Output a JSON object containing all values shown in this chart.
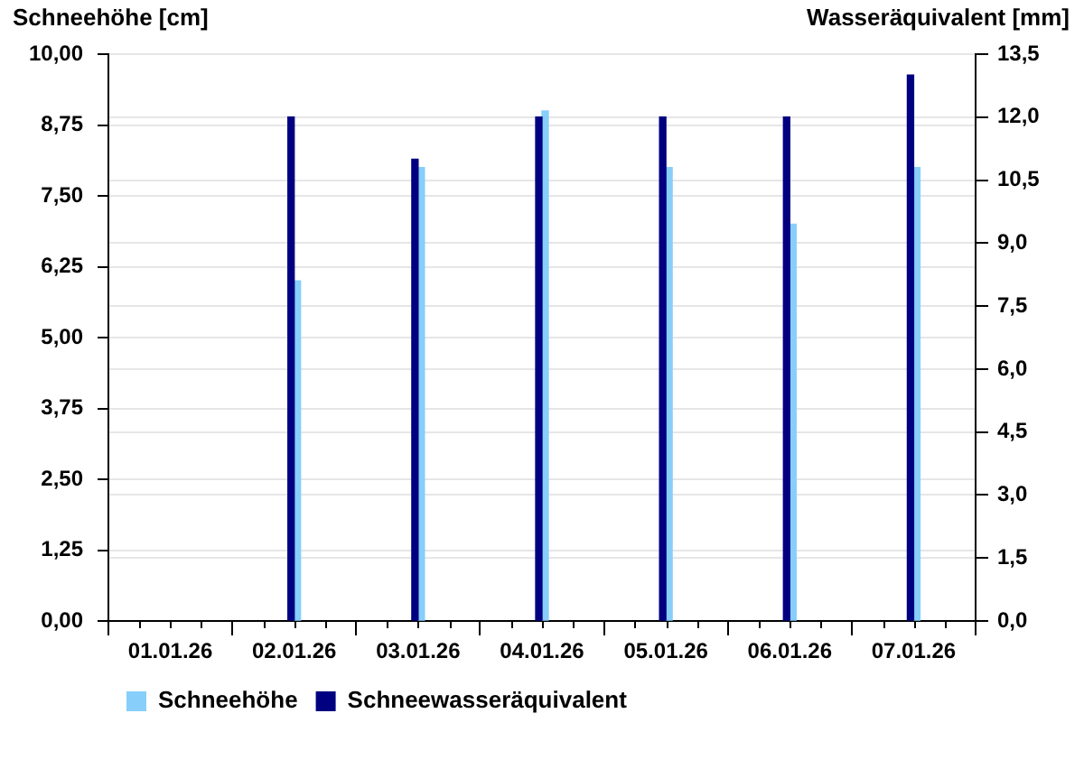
{
  "chart_data": {
    "type": "bar",
    "categories": [
      "01.01.26",
      "02.01.26",
      "03.01.26",
      "04.01.26",
      "05.01.26",
      "06.01.26",
      "07.01.26"
    ],
    "ylabel": "Schneehöhe [cm]",
    "y2label": "Wasseräquivalent [mm]",
    "series": [
      {
        "name": "Schneehöhe",
        "color": "#87cefa",
        "values": [
          null,
          6.0,
          8.0,
          9.0,
          8.0,
          7.0,
          8.0
        ]
      },
      {
        "name": "Schneewasseräquivalent",
        "color": "#000080",
        "axis": "y2",
        "values": [
          null,
          12.0,
          11.0,
          12.0,
          12.0,
          12.0,
          13.0
        ]
      }
    ],
    "ylim": [
      0,
      10
    ],
    "yticks": [
      {
        "value": 0,
        "label": "0,00"
      },
      {
        "value": 1.25,
        "label": "1,25"
      },
      {
        "value": 2.5,
        "label": "2,50"
      },
      {
        "value": 3.75,
        "label": "3,75"
      },
      {
        "value": 5,
        "label": "5,00"
      },
      {
        "value": 6.25,
        "label": "6,25"
      },
      {
        "value": 7.5,
        "label": "7,50"
      },
      {
        "value": 8.75,
        "label": "8,75"
      },
      {
        "value": 10,
        "label": "10,00"
      }
    ],
    "y2lim": [
      0,
      13.5
    ],
    "y2ticks": [
      {
        "value": 0,
        "label": "0,0"
      },
      {
        "value": 1.5,
        "label": "1,5"
      },
      {
        "value": 3,
        "label": "3,0"
      },
      {
        "value": 4.5,
        "label": "4,5"
      },
      {
        "value": 6,
        "label": "6,0"
      },
      {
        "value": 7.5,
        "label": "7,5"
      },
      {
        "value": 9,
        "label": "9,0"
      },
      {
        "value": 10.5,
        "label": "10,5"
      },
      {
        "value": 12,
        "label": "12,0"
      },
      {
        "value": 13.5,
        "label": "13,5"
      }
    ],
    "grid": "y",
    "legend": "bottom left"
  }
}
